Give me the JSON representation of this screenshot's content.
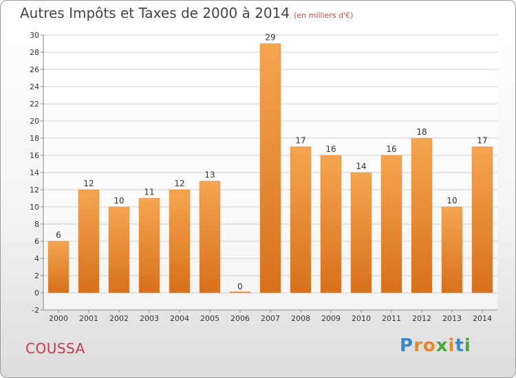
{
  "header": {
    "title": "Autres Impôts et Taxes de 2000 à 2014",
    "unit": "(en milliers d'€)"
  },
  "footer": {
    "commune": "COUSSA",
    "logo": "Proxiti"
  },
  "colors": {
    "bar_top": "#f5a550",
    "bar_bottom": "#d8701a",
    "grid": "#cfcfcf",
    "title": "#444444",
    "commune": "#c8384a"
  },
  "chart_data": {
    "type": "bar",
    "title": "Autres Impôts et Taxes de 2000 à 2014",
    "subtitle": "(en milliers d'€)",
    "categories": [
      "2000",
      "2001",
      "2002",
      "2003",
      "2004",
      "2005",
      "2006",
      "2007",
      "2008",
      "2009",
      "2010",
      "2011",
      "2012",
      "2013",
      "2014"
    ],
    "values": [
      6,
      12,
      10,
      11,
      12,
      13,
      0,
      29,
      17,
      16,
      14,
      16,
      18,
      10,
      17
    ],
    "ylim": [
      -2,
      30
    ],
    "yticks": [
      -2,
      0,
      2,
      4,
      6,
      8,
      10,
      12,
      14,
      16,
      18,
      20,
      22,
      24,
      26,
      28,
      30
    ],
    "grid": true,
    "data_labels": true
  }
}
